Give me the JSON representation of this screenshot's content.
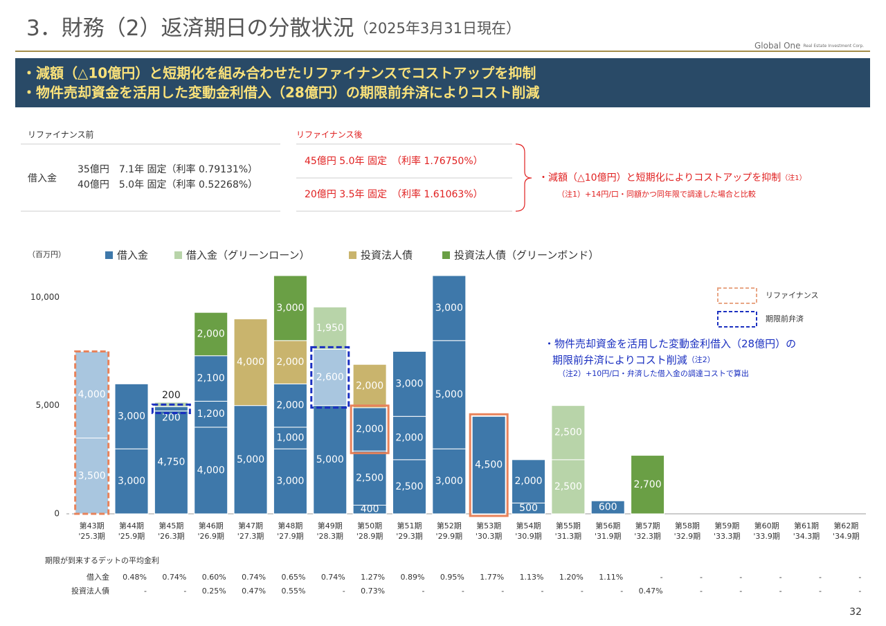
{
  "header": {
    "title": "3．財務（2）返済期日の分散状況",
    "subtitle": "（2025年3月31日現在）",
    "logo": "Global One",
    "logo_sub": "Real Estate Investment Corp."
  },
  "banner": [
    "・減額（△10億円）と短期化を組み合わせたリファイナンスでコストアップを抑制",
    "・物件売却資金を活用した変動金利借入（28億円）の期限前弁済によりコスト削減"
  ],
  "before": {
    "heading": "リファイナンス前",
    "label": "借入金",
    "lines": [
      "35億円　7.1年 固定（利率 0.79131%）",
      "40億円　5.0年 固定（利率 0.52268%）"
    ]
  },
  "after": {
    "heading": "リファイナンス後",
    "lines": [
      "45億円  5.0年 固定　（利率 1.76750%）",
      "20億円  3.5年 固定　（利率 1.61063%）"
    ]
  },
  "note1": {
    "text": "・減額（△10億円）と短期化によりコストアップを抑制",
    "mark": "（注1）",
    "detail": "（注1）+14円/口・同額かつ同年限で調達した場合と比較"
  },
  "chart_data": {
    "type": "bar",
    "stacked": true,
    "unit_label": "（百万円）",
    "series": [
      {
        "name": "借入金",
        "color": "#3e78aa"
      },
      {
        "name": "借入金（グリーンローン）",
        "color": "#b8d4a9"
      },
      {
        "name": "投資法人債",
        "color": "#c9b46d"
      },
      {
        "name": "投資法人債（グリーンボンド）",
        "color": "#6a9f45"
      }
    ],
    "faded_color": "#a9c6df",
    "categories": [
      "第43期",
      "第44期",
      "第45期",
      "第46期",
      "第47期",
      "第48期",
      "第49期",
      "第50期",
      "第51期",
      "第52期",
      "第53期",
      "第54期",
      "第55期",
      "第56期",
      "第57期",
      "第58期",
      "第59期",
      "第60期",
      "第61期",
      "第62期"
    ],
    "category_sublabels": [
      "'25.3期",
      "'25.9期",
      "'26.3期",
      "'26.9期",
      "'27.3期",
      "'27.9期",
      "'28.3期",
      "'28.9期",
      "'29.3期",
      "'29.9期",
      "'30.3期",
      "'30.9期",
      "'31.3期",
      "'31.9期",
      "'32.3期",
      "'32.9期",
      "'33.3期",
      "'33.9期",
      "'34.3期",
      "'34.9期"
    ],
    "bars": [
      {
        "segments": [
          {
            "series": 0,
            "value": 3500,
            "label": "3,500",
            "faded": true,
            "outline": "refinance-old"
          },
          {
            "series": 0,
            "value": 4000,
            "label": "4,000",
            "faded": true,
            "outline": "refinance-old"
          }
        ]
      },
      {
        "segments": [
          {
            "series": 0,
            "value": 3000,
            "label": "3,000"
          },
          {
            "series": 0,
            "value": 3000,
            "label": "3,000"
          }
        ]
      },
      {
        "segments": [
          {
            "series": 0,
            "value": 4750,
            "label": "4,750"
          },
          {
            "series": 0,
            "value": 200,
            "outline": "prepayment",
            "label_pos": "below"
          },
          {
            "series": 1,
            "value": 200,
            "label_pos": "above"
          }
        ]
      },
      {
        "segments": [
          {
            "series": 0,
            "value": 4000,
            "label": "4,000"
          },
          {
            "series": 0,
            "value": 1200,
            "label": "1,200"
          },
          {
            "series": 0,
            "value": 2100,
            "label": "2,100"
          },
          {
            "series": 3,
            "value": 2000,
            "label": "2,000"
          }
        ]
      },
      {
        "segments": [
          {
            "series": 0,
            "value": 5000,
            "label": "5,000"
          },
          {
            "series": 2,
            "value": 4000,
            "label": "4,000"
          }
        ]
      },
      {
        "segments": [
          {
            "series": 0,
            "value": 3000,
            "label": "3,000"
          },
          {
            "series": 0,
            "value": 1000,
            "label": "1,000"
          },
          {
            "series": 0,
            "value": 2000,
            "label": "2,000"
          },
          {
            "series": 2,
            "value": 2000,
            "label": "2,000"
          },
          {
            "series": 3,
            "value": 3000,
            "label": "3,000"
          }
        ]
      },
      {
        "segments": [
          {
            "series": 0,
            "value": 5000,
            "label": "5,000"
          },
          {
            "series": 0,
            "value": 2600,
            "label": "2,600",
            "faded": true,
            "outline": "prepayment"
          },
          {
            "series": 1,
            "value": 1950,
            "label": "1,950"
          }
        ]
      },
      {
        "segments": [
          {
            "series": 0,
            "value": 400
          },
          {
            "series": 0,
            "value": 2500,
            "label": "2,500"
          },
          {
            "series": 0,
            "value": 2000,
            "label": "2,000",
            "outline": "refinance-new"
          },
          {
            "series": 2,
            "value": 2000,
            "label": "2,000"
          }
        ]
      },
      {
        "segments": [
          {
            "series": 0,
            "value": 2500,
            "label": "2,500"
          },
          {
            "series": 0,
            "value": 2000,
            "label": "2,000"
          },
          {
            "series": 0,
            "value": 3000,
            "label": "3,000"
          }
        ]
      },
      {
        "segments": [
          {
            "series": 0,
            "value": 3000,
            "label": "3,000"
          },
          {
            "series": 0,
            "value": 5000,
            "label": "5,000"
          },
          {
            "series": 0,
            "value": 3000,
            "label": "3,000"
          }
        ]
      },
      {
        "segments": [
          {
            "series": 0,
            "value": 4500,
            "label": "4,500",
            "outline": "refinance-new"
          }
        ]
      },
      {
        "segments": [
          {
            "series": 0,
            "value": 500
          },
          {
            "series": 0,
            "value": 2000,
            "label": "2,000"
          }
        ]
      },
      {
        "segments": [
          {
            "series": 1,
            "value": 2500,
            "label": "2,500"
          },
          {
            "series": 1,
            "value": 2500,
            "label": "2,500"
          }
        ]
      },
      {
        "segments": [
          {
            "series": 0,
            "value": 600
          }
        ]
      },
      {
        "segments": [
          {
            "series": 3,
            "value": 2700,
            "label": "2,700"
          }
        ]
      },
      {
        "segments": []
      },
      {
        "segments": []
      },
      {
        "segments": []
      },
      {
        "segments": []
      },
      {
        "segments": []
      }
    ],
    "ylim": [
      0,
      11000
    ],
    "yticks": [
      0,
      {
        "value": 5000,
        "label": "5,000"
      },
      {
        "value": 10000,
        "label": "10,000"
      }
    ],
    "outlines": {
      "refinance-old": {
        "color": "#e8825a",
        "dashed": true
      },
      "refinance-new": {
        "color": "#e8825a",
        "dashed": false
      },
      "prepayment": {
        "color": "#1a2fc0",
        "dashed": true
      }
    },
    "outline_legend": [
      {
        "label": "リファイナンス",
        "color": "#e8a584"
      },
      {
        "label": "期限前弁済",
        "color": "#1a2fc0"
      }
    ],
    "annotation": {
      "lines": [
        "・物件売却資金を活用した変動金利借入（28億円）の",
        "期限前弁済によりコスト削減"
      ],
      "mark": "（注2）",
      "detail": "（注2）+10円/口・弁済した借入金の調達コストで算出"
    }
  },
  "rate_table": {
    "title": "期限が到来するデットの平均金利",
    "rows": [
      {
        "label": "借入金",
        "values": [
          "0.48%",
          "0.74%",
          "0.60%",
          "0.74%",
          "0.65%",
          "0.74%",
          "1.27%",
          "0.89%",
          "0.95%",
          "1.77%",
          "1.13%",
          "1.20%",
          "1.11%",
          "-",
          "-",
          "-",
          "-",
          "-",
          "-"
        ]
      },
      {
        "label": "投資法人債",
        "values": [
          "-",
          "-",
          "0.25%",
          "0.47%",
          "0.55%",
          "-",
          "0.73%",
          "-",
          "-",
          "-",
          "-",
          "-",
          "-",
          "0.47%",
          "-",
          "-",
          "-",
          "-",
          "-"
        ]
      }
    ]
  },
  "page_number": "32"
}
